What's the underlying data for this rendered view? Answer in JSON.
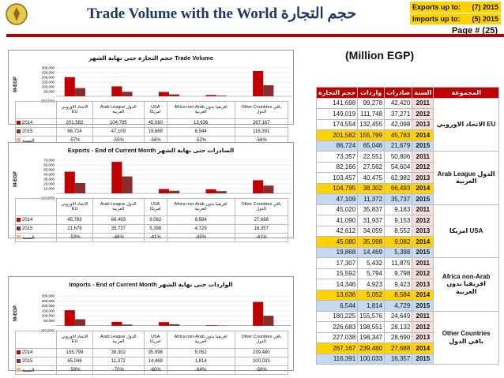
{
  "header": {
    "title": "Trade Volume with the World حجم التجارة",
    "exports_label": "Exports up to:",
    "exports_value": "(7)  2015",
    "imports_label": "Imports up to:",
    "imports_value": "(5)  2015",
    "page": "Page # (25)",
    "unit": "(Million EGP)",
    "colors": {
      "title": "#1f3864",
      "highlight": "#ffd200",
      "accent": "#c00000",
      "series_2014": "#c00000",
      "series_2015": "#8b2c2c"
    }
  },
  "chart_data": [
    {
      "type": "bar",
      "title": "حجم التجارة حتى نهاية الشهر Trade Volume",
      "ylabel": "M-EGP",
      "ylim": [
        -50000,
        300000
      ],
      "yticks": [
        "300,000",
        "250,000",
        "200,000",
        "150,000",
        "100,000",
        "50,000",
        "-",
        "(50,000)"
      ],
      "categories": [
        "الاتحاد الاوروبي EU",
        "Arab League الدول العربية",
        "USA امريكا",
        "Africa non-Arab افريقيا بدون العربية",
        "Other Countries باقي الدول"
      ],
      "series": [
        {
          "name": "2014",
          "values": [
            201582,
            104795,
            45080,
            13636,
            267167
          ],
          "labels": [
            "201,582",
            "104,795",
            "45,080",
            "13,636",
            "267,167"
          ]
        },
        {
          "name": "2015",
          "values": [
            86724,
            47109,
            19868,
            6544,
            116391
          ],
          "labels": [
            "86,724",
            "47,109",
            "19,868",
            "6,544",
            "116,391"
          ]
        }
      ],
      "change": {
        "name": "النسبة",
        "values": [
          "-57%",
          "-55%",
          "-56%",
          "-52%",
          "-56%"
        ]
      }
    },
    {
      "type": "bar",
      "title": "Exports - End of Current Month  الصادرات حتى نهاية الشهر",
      "ylabel": "M-EGP",
      "ylim": [
        -10000,
        70000
      ],
      "yticks": [
        "70,000",
        "60,000",
        "50,000",
        "40,000",
        "30,000",
        "20,000",
        "10,000",
        "-",
        "(10,000)"
      ],
      "categories": [
        "الاتحاد الاوروبي EU",
        "Arab League الدول العربية",
        "USA امريكا",
        "Africa non-Arab افريقيا بدون العربية",
        "Other Countries باقي الدول"
      ],
      "series": [
        {
          "name": "2014",
          "values": [
            45783,
            66493,
            9082,
            8584,
            27688
          ],
          "labels": [
            "45,783",
            "66,493",
            "9,082",
            "8,584",
            "27,688"
          ]
        },
        {
          "name": "2015",
          "values": [
            21679,
            35737,
            5398,
            4729,
            16357
          ],
          "labels": [
            "21,679",
            "35,737",
            "5,398",
            "4,729",
            "16,357"
          ]
        }
      ],
      "change": {
        "name": "النسبة",
        "values": [
          "-53%",
          "-46%",
          "-41%",
          "-45%",
          "-41%"
        ]
      }
    },
    {
      "type": "bar",
      "title": "Imports - End of Current Month  الواردات حتى نهاية الشهر",
      "ylabel": "M-EGP",
      "ylim": [
        -50000,
        300000
      ],
      "yticks": [
        "300,000",
        "250,000",
        "200,000",
        "150,000",
        "100,000",
        "50,000",
        "-",
        "(50,000)"
      ],
      "categories": [
        "الاتحاد الاوروبي EU",
        "Arab League الدول العربية",
        "USA امريكا",
        "Africa non-Arab افريقيا بدون العربية",
        "Other Countries باقي الدول"
      ],
      "series": [
        {
          "name": "2014",
          "values": [
            155799,
            38302,
            35998,
            5052,
            239480
          ],
          "labels": [
            "155,799",
            "38,302",
            "35,998",
            "5,052",
            "239,480"
          ]
        },
        {
          "name": "2015",
          "values": [
            65046,
            11372,
            14469,
            1814,
            100033
          ],
          "labels": [
            "65,046",
            "11,372",
            "14,469",
            "1,814",
            "100,033"
          ]
        }
      ],
      "change": {
        "name": "النسبة",
        "values": [
          "-58%",
          "-70%",
          "-60%",
          "-64%",
          "-58%"
        ]
      }
    }
  ],
  "table": {
    "headers": [
      "المجموعة",
      "السنة",
      "صادرات",
      "واردات",
      "حجم التجارة"
    ],
    "groups": [
      {
        "name": "الاتحاد الاوروبي EU",
        "rows": [
          [
            "2011",
            "42,420",
            "99,278",
            "141,698"
          ],
          [
            "2012",
            "37,271",
            "111,748",
            "149,019"
          ],
          [
            "2013",
            "42,098",
            "132,455",
            "174,554"
          ],
          [
            "2014",
            "45,783",
            "155,799",
            "201,582"
          ],
          [
            "2015",
            "21,679",
            "65,046",
            "86,724"
          ]
        ]
      },
      {
        "name": "Arab League الدول العربية",
        "rows": [
          [
            "2011",
            "50,806",
            "22,551",
            "73,357"
          ],
          [
            "2012",
            "54,604",
            "27,562",
            "82,166"
          ],
          [
            "2013",
            "62,982",
            "40,475",
            "103,457"
          ],
          [
            "2014",
            "66,493",
            "38,302",
            "104,795"
          ],
          [
            "2015",
            "35,737",
            "11,372",
            "47,109"
          ]
        ]
      },
      {
        "name": "امريكا USA",
        "rows": [
          [
            "2011",
            "9,183",
            "35,837",
            "45,020"
          ],
          [
            "2012",
            "9,153",
            "31,937",
            "41,090"
          ],
          [
            "2013",
            "8,552",
            "34,059",
            "42,612"
          ],
          [
            "2014",
            "9,082",
            "35,998",
            "45,080"
          ],
          [
            "2015",
            "5,398",
            "14,469",
            "19,868"
          ]
        ]
      },
      {
        "name": "Africa non-Arab افريقيا بدون العربية",
        "rows": [
          [
            "2011",
            "11,875",
            "5,432",
            "17,307"
          ],
          [
            "2012",
            "9,798",
            "5,794",
            "15,592"
          ],
          [
            "2013",
            "9,423",
            "4,923",
            "14,346"
          ],
          [
            "2014",
            "8,584",
            "5,052",
            "13,636"
          ],
          [
            "2015",
            "4,729",
            "1,814",
            "6,544"
          ]
        ]
      },
      {
        "name": "Other Countries باقي الدول",
        "rows": [
          [
            "2011",
            "24,649",
            "155,576",
            "180,225"
          ],
          [
            "2012",
            "28,132",
            "198,551",
            "226,683"
          ],
          [
            "2013",
            "28,690",
            "198,347",
            "227,038"
          ],
          [
            "2014",
            "27,688",
            "239,480",
            "267,167"
          ],
          [
            "2015",
            "16,357",
            "100,033",
            "116,391"
          ]
        ]
      }
    ]
  }
}
